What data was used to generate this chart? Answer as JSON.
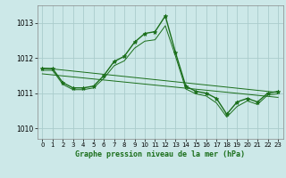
{
  "background_color": "#cce8e8",
  "grid_color": "#aacccc",
  "line_color": "#1a6e1a",
  "title": "Graphe pression niveau de la mer (hPa)",
  "ylim": [
    1009.7,
    1013.5
  ],
  "xlim": [
    -0.5,
    23.5
  ],
  "yticks": [
    1010,
    1011,
    1012,
    1013
  ],
  "xticks": [
    0,
    1,
    2,
    3,
    4,
    5,
    6,
    7,
    8,
    9,
    10,
    11,
    12,
    13,
    14,
    15,
    16,
    17,
    18,
    19,
    20,
    21,
    22,
    23
  ],
  "series": [
    {
      "x": [
        0,
        1,
        2,
        3,
        4,
        5,
        6,
        7,
        8,
        9,
        10,
        11,
        12,
        13,
        14,
        15,
        16,
        17,
        18,
        19,
        20,
        21,
        22,
        23
      ],
      "y": [
        1011.7,
        1011.7,
        1011.3,
        1011.15,
        1011.15,
        1011.2,
        1011.5,
        1011.9,
        1012.05,
        1012.45,
        1012.7,
        1012.75,
        1013.2,
        1012.15,
        1011.2,
        1011.05,
        1011.0,
        1010.85,
        1010.4,
        1010.75,
        1010.85,
        1010.75,
        1011.0,
        1011.05
      ],
      "marker": "*",
      "linewidth": 1.0,
      "markersize": 3.5
    },
    {
      "x": [
        0,
        1,
        2,
        3,
        4,
        5,
        6,
        7,
        8,
        9,
        10,
        11,
        12,
        13,
        14,
        15,
        16,
        17,
        18,
        19,
        20,
        21,
        22,
        23
      ],
      "y": [
        1011.65,
        1011.65,
        1011.25,
        1011.1,
        1011.1,
        1011.15,
        1011.42,
        1011.78,
        1011.92,
        1012.28,
        1012.48,
        1012.52,
        1012.92,
        1012.05,
        1011.12,
        1010.98,
        1010.92,
        1010.72,
        1010.32,
        1010.62,
        1010.78,
        1010.68,
        1010.95,
        1010.98
      ],
      "marker": "None",
      "linewidth": 0.7,
      "markersize": 0
    },
    {
      "x": [
        0,
        23
      ],
      "y": [
        1011.72,
        1011.02
      ],
      "marker": "None",
      "linewidth": 0.7,
      "markersize": 0
    },
    {
      "x": [
        0,
        23
      ],
      "y": [
        1011.55,
        1010.88
      ],
      "marker": "None",
      "linewidth": 0.7,
      "markersize": 0
    }
  ]
}
